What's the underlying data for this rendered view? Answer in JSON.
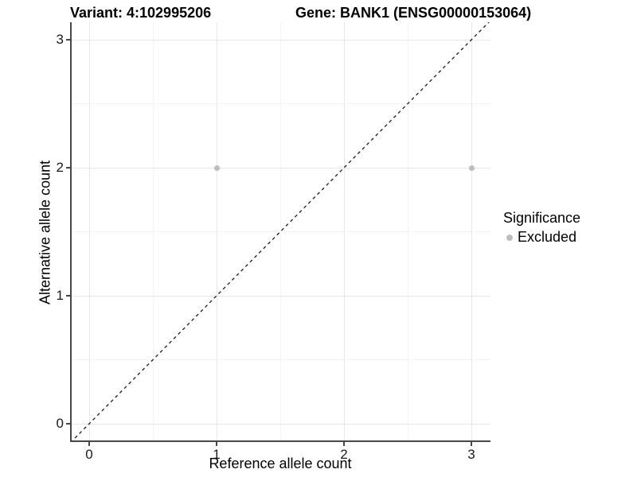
{
  "titles": {
    "variant": "Variant: 4:102995206",
    "gene": "Gene: BANK1 (ENSG00000153064)"
  },
  "axes": {
    "x": {
      "label": "Reference allele count",
      "tick_labels": [
        "0",
        "1",
        "2",
        "3"
      ]
    },
    "y": {
      "label": "Alternative allele count",
      "tick_labels": [
        "0",
        "1",
        "2",
        "3"
      ]
    }
  },
  "legend": {
    "title": "Significance",
    "items": [
      {
        "label": "Excluded",
        "color": "#bdbdbd"
      }
    ]
  },
  "colors": {
    "background": "#ffffff",
    "point": "#bdbdbd",
    "grid_major": "#e6e6e6",
    "grid_minor": "#f3f3f3",
    "axis_line": "#474747",
    "tick_label": "#1a1a1a",
    "reference_line": "#1a1a1a",
    "text": "#000000"
  },
  "chart_data": {
    "type": "scatter",
    "title": "Variant: 4:102995206 / Gene: BANK1 (ENSG00000153064)",
    "xlabel": "Reference allele count",
    "ylabel": "Alternative allele count",
    "x_ticks": [
      0,
      1,
      2,
      3
    ],
    "y_ticks": [
      0,
      1,
      2,
      3
    ],
    "xlim": [
      -0.15,
      3.15
    ],
    "ylim": [
      -0.15,
      3.15
    ],
    "grid": "major+minor",
    "legend_position": "right",
    "series": [
      {
        "name": "Excluded",
        "color": "#bdbdbd",
        "marker": "circle",
        "points": [
          [
            1,
            2
          ],
          [
            3,
            2
          ]
        ]
      }
    ],
    "reference_line": {
      "type": "identity y=x",
      "style": "dashed",
      "color": "#1a1a1a"
    }
  }
}
